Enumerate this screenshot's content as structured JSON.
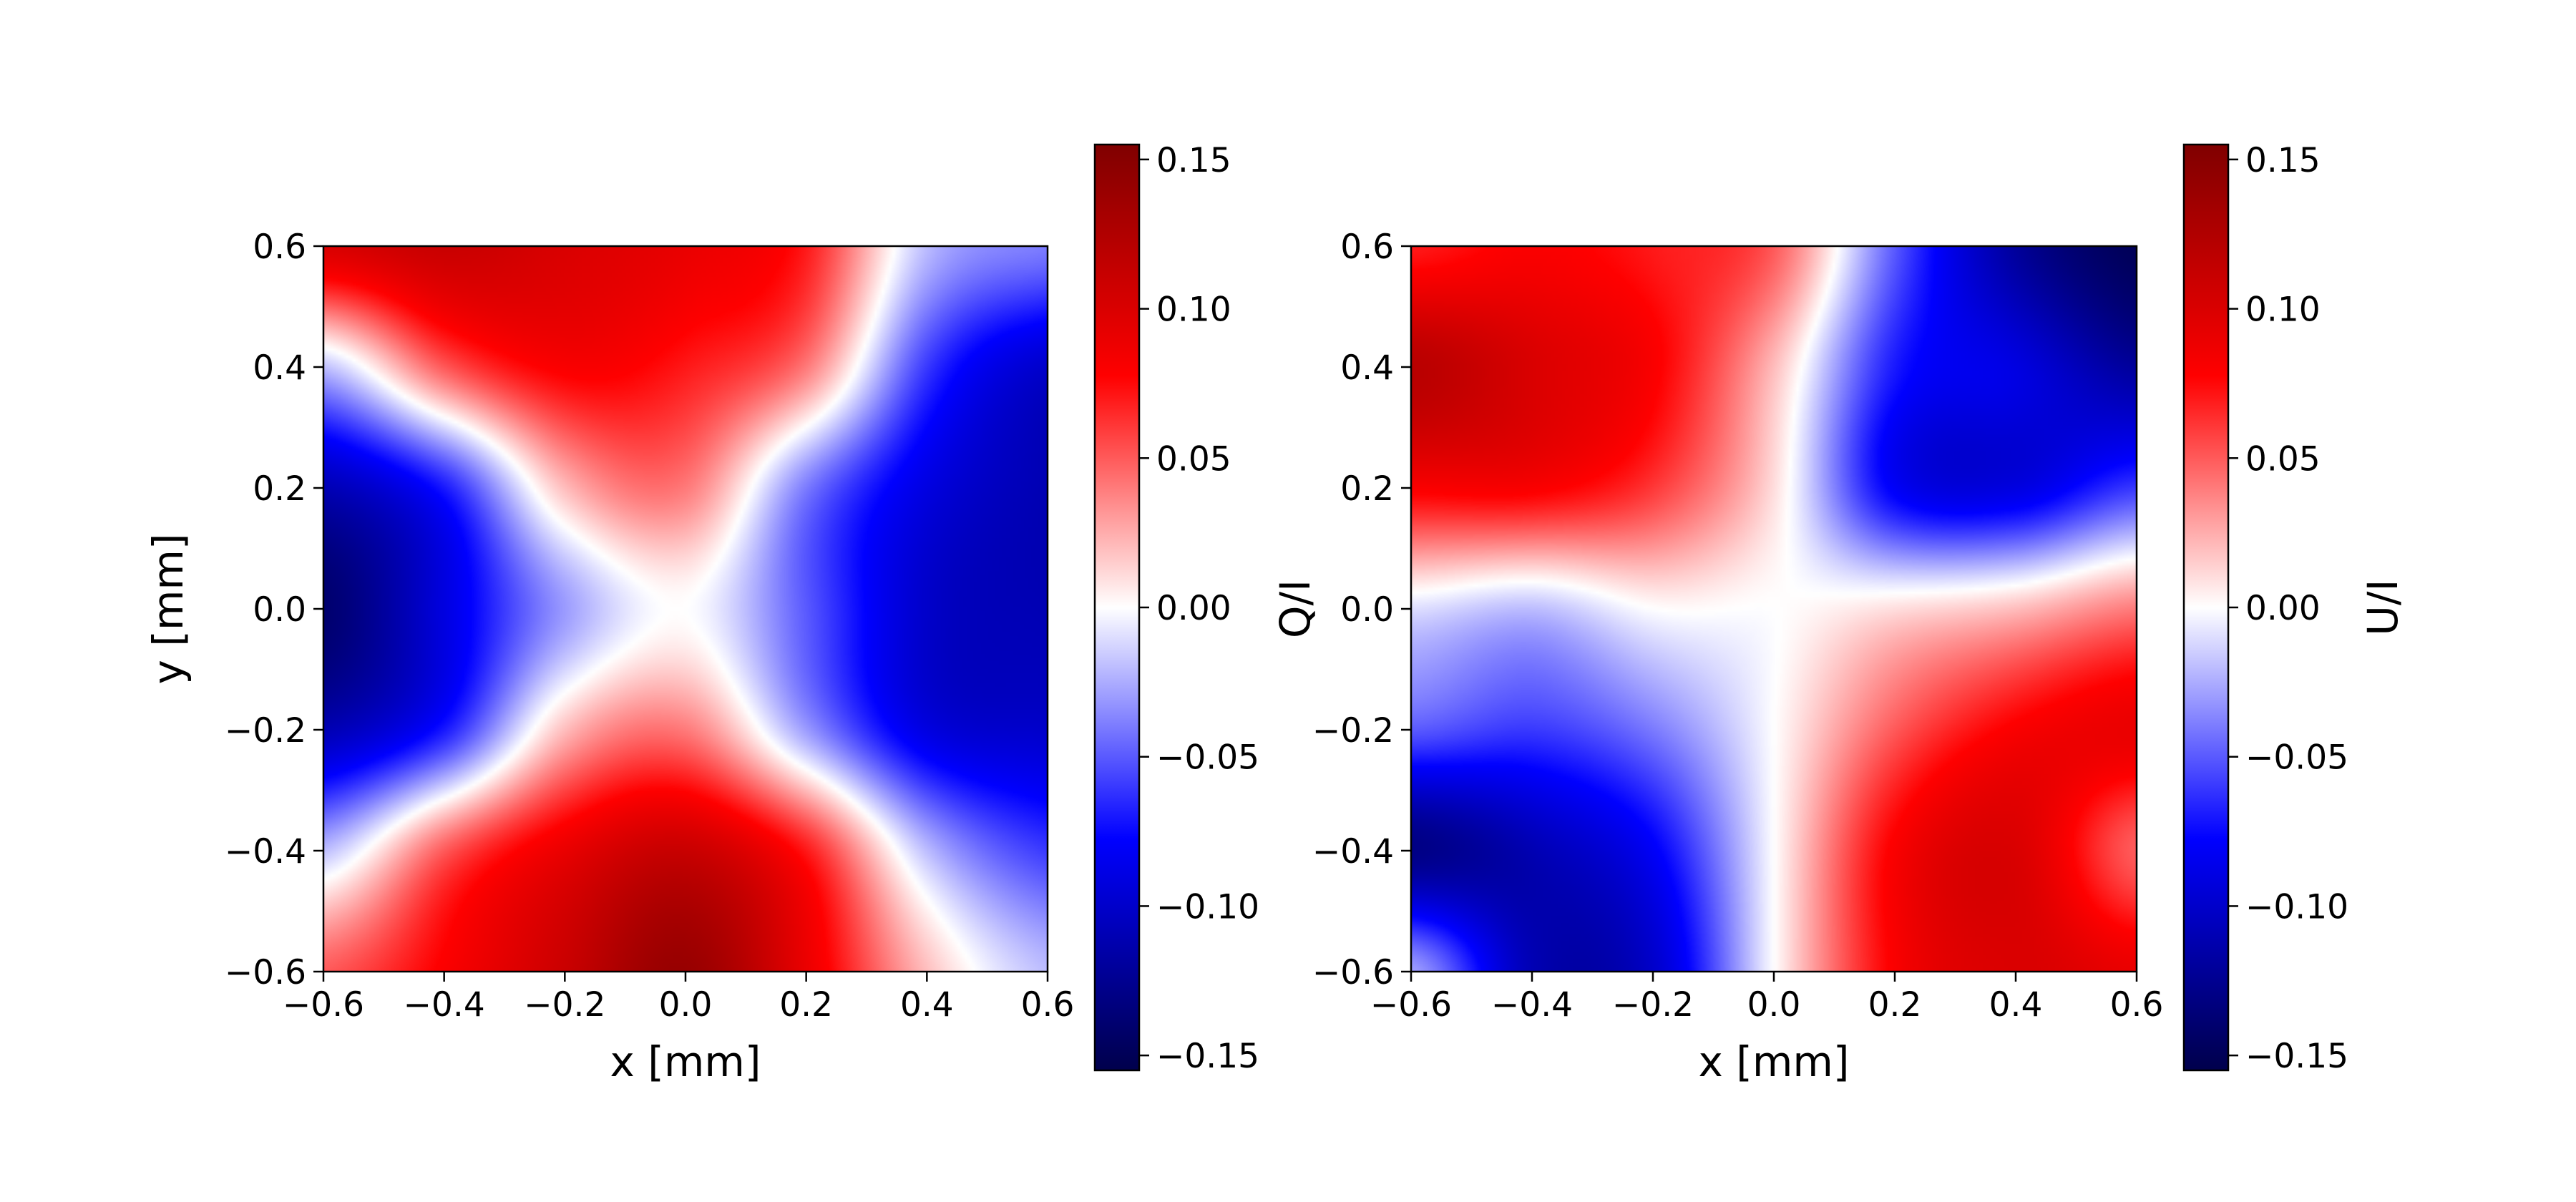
{
  "colormap": {
    "name": "seismic",
    "stops": [
      "#00004c",
      "#0000ff",
      "#ffffff",
      "#ff0000",
      "#800000"
    ]
  },
  "chart_data": [
    {
      "type": "heatmap",
      "xlabel": "x [mm]",
      "ylabel": "y [mm]",
      "colorbar_label": "",
      "xlim": [
        -0.6,
        0.6
      ],
      "ylim": [
        -0.6,
        0.6
      ],
      "clim": [
        -0.155,
        0.155
      ],
      "xticks": [
        -0.6,
        -0.4,
        -0.2,
        0.0,
        0.2,
        0.4,
        0.6
      ],
      "yticks": [
        -0.6,
        -0.4,
        -0.2,
        0.0,
        0.2,
        0.4,
        0.6
      ],
      "xtick_labels": [
        "−0.6",
        "−0.4",
        "−0.2",
        "0.0",
        "0.2",
        "0.4",
        "0.6"
      ],
      "ytick_labels": [
        "−0.6",
        "−0.4",
        "−0.2",
        "0.0",
        "0.2",
        "0.4",
        "0.6"
      ],
      "cbar_ticks": [
        -0.15,
        -0.1,
        -0.05,
        0.0,
        0.05,
        0.1,
        0.15
      ],
      "cbar_tick_labels": [
        "−0.15",
        "−0.10",
        "−0.05",
        "0.00",
        "0.05",
        "0.10",
        "0.15"
      ],
      "grid": false,
      "x": [
        -0.6,
        -0.4,
        -0.2,
        0.0,
        0.2,
        0.4,
        0.6
      ],
      "y": [
        0.6,
        0.4,
        0.2,
        0.0,
        -0.2,
        -0.4,
        -0.6
      ],
      "z": [
        [
          0.1,
          0.11,
          0.1,
          0.09,
          0.07,
          -0.02,
          -0.04
        ],
        [
          -0.02,
          0.05,
          0.08,
          0.07,
          0.04,
          -0.06,
          -0.1
        ],
        [
          -0.11,
          -0.07,
          0.02,
          0.04,
          -0.04,
          -0.09,
          -0.11
        ],
        [
          -0.14,
          -0.09,
          -0.03,
          0.0,
          -0.05,
          -0.1,
          -0.11
        ],
        [
          -0.11,
          -0.07,
          0.02,
          0.04,
          -0.03,
          -0.09,
          -0.1
        ],
        [
          -0.02,
          0.05,
          0.09,
          0.11,
          0.07,
          -0.02,
          -0.06
        ],
        [
          0.05,
          0.08,
          0.11,
          0.14,
          0.09,
          0.02,
          -0.02
        ]
      ]
    },
    {
      "type": "heatmap",
      "xlabel": "x [mm]",
      "ylabel": "Q/I",
      "colorbar_label": "U/I",
      "xlim": [
        -0.6,
        0.6
      ],
      "ylim": [
        -0.6,
        0.6
      ],
      "clim": [
        -0.155,
        0.155
      ],
      "xticks": [
        -0.6,
        -0.4,
        -0.2,
        0.0,
        0.2,
        0.4,
        0.6
      ],
      "yticks": [
        -0.6,
        -0.4,
        -0.2,
        0.0,
        0.2,
        0.4,
        0.6
      ],
      "xtick_labels": [
        "−0.6",
        "−0.4",
        "−0.2",
        "0.0",
        "0.2",
        "0.4",
        "0.6"
      ],
      "ytick_labels": [
        "−0.6",
        "−0.4",
        "−0.2",
        "0.0",
        "0.2",
        "0.4",
        "0.6"
      ],
      "cbar_ticks": [
        -0.15,
        -0.1,
        -0.05,
        0.0,
        0.05,
        0.1,
        0.15
      ],
      "cbar_tick_labels": [
        "−0.15",
        "−0.10",
        "−0.05",
        "0.00",
        "0.05",
        "0.10",
        "0.15"
      ],
      "grid": false,
      "x": [
        -0.6,
        -0.4,
        -0.2,
        0.0,
        0.2,
        0.4,
        0.6
      ],
      "y": [
        0.6,
        0.4,
        0.2,
        0.0,
        -0.2,
        -0.4,
        -0.6
      ],
      "z": [
        [
          0.07,
          0.08,
          0.07,
          0.05,
          -0.05,
          -0.12,
          -0.15
        ],
        [
          0.12,
          0.1,
          0.08,
          0.02,
          -0.07,
          -0.09,
          -0.12
        ],
        [
          0.08,
          0.08,
          0.06,
          0.01,
          -0.08,
          -0.09,
          -0.06
        ],
        [
          -0.01,
          -0.02,
          0.0,
          0.0,
          0.01,
          0.02,
          0.04
        ],
        [
          -0.05,
          -0.06,
          -0.04,
          0.0,
          0.05,
          0.08,
          0.09
        ],
        [
          -0.13,
          -0.11,
          -0.08,
          0.0,
          0.08,
          0.1,
          0.05
        ],
        [
          -0.03,
          -0.11,
          -0.1,
          0.0,
          0.08,
          0.1,
          0.09
        ]
      ]
    }
  ]
}
